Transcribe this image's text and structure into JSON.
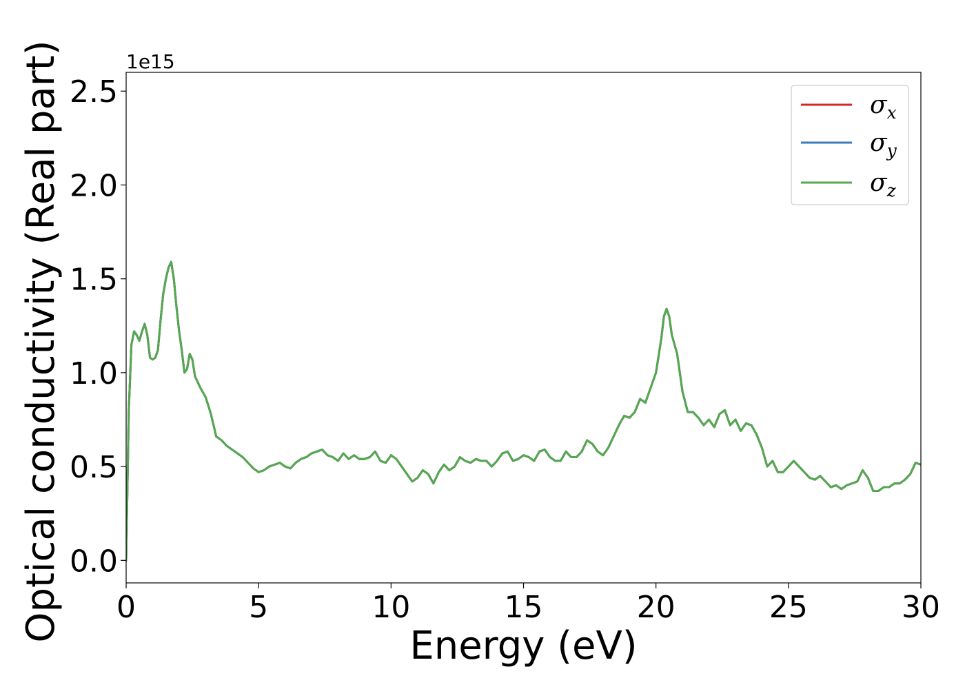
{
  "chart_data": {
    "type": "line",
    "xlabel": "Energy (eV)",
    "ylabel": "Optical conductivity (Real part)",
    "y_offset_label": "1e15",
    "xlim": [
      0,
      30
    ],
    "ylim": [
      -0.12,
      2.6
    ],
    "x_ticks": [
      0,
      5,
      10,
      15,
      20,
      25,
      30
    ],
    "x_tick_labels": [
      "0",
      "5",
      "10",
      "15",
      "20",
      "25",
      "30"
    ],
    "y_ticks": [
      0.0,
      0.5,
      1.0,
      1.5,
      2.0,
      2.5
    ],
    "y_tick_labels": [
      "0.0",
      "0.5",
      "1.0",
      "1.5",
      "2.0",
      "2.5"
    ],
    "grid": false,
    "legend_position": "top-right",
    "x": [
      0,
      0.1,
      0.2,
      0.3,
      0.4,
      0.5,
      0.6,
      0.7,
      0.8,
      0.9,
      1.0,
      1.1,
      1.2,
      1.3,
      1.4,
      1.5,
      1.6,
      1.7,
      1.8,
      1.9,
      2.0,
      2.1,
      2.2,
      2.3,
      2.4,
      2.5,
      2.6,
      2.7,
      2.8,
      3.0,
      3.2,
      3.4,
      3.6,
      3.8,
      4.0,
      4.2,
      4.4,
      4.6,
      4.8,
      5.0,
      5.2,
      5.4,
      5.6,
      5.8,
      6.0,
      6.2,
      6.4,
      6.6,
      6.8,
      7.0,
      7.2,
      7.4,
      7.6,
      7.8,
      8.0,
      8.2,
      8.4,
      8.6,
      8.8,
      9.0,
      9.2,
      9.4,
      9.6,
      9.8,
      10.0,
      10.2,
      10.4,
      10.6,
      10.8,
      11.0,
      11.2,
      11.4,
      11.6,
      11.8,
      12.0,
      12.2,
      12.4,
      12.6,
      12.8,
      13.0,
      13.2,
      13.4,
      13.6,
      13.8,
      14.0,
      14.2,
      14.4,
      14.6,
      14.8,
      15.0,
      15.2,
      15.4,
      15.6,
      15.8,
      16.0,
      16.2,
      16.4,
      16.6,
      16.8,
      17.0,
      17.2,
      17.4,
      17.6,
      17.8,
      18.0,
      18.2,
      18.4,
      18.6,
      18.8,
      19.0,
      19.2,
      19.4,
      19.6,
      19.8,
      20.0,
      20.2,
      20.3,
      20.4,
      20.5,
      20.6,
      20.7,
      20.8,
      21.0,
      21.2,
      21.4,
      21.6,
      21.8,
      22.0,
      22.2,
      22.4,
      22.6,
      22.8,
      23.0,
      23.2,
      23.4,
      23.6,
      23.8,
      24.0,
      24.2,
      24.4,
      24.6,
      24.8,
      25.0,
      25.2,
      25.4,
      25.6,
      25.8,
      26.0,
      26.2,
      26.4,
      26.6,
      26.8,
      27.0,
      27.2,
      27.4,
      27.6,
      27.8,
      28.0,
      28.2,
      28.4,
      28.6,
      28.8,
      29.0,
      29.2,
      29.4,
      29.6,
      29.8,
      30.0
    ],
    "series": [
      {
        "name": "σx",
        "label_base": "σ",
        "label_sub": "x",
        "color": "#d62728",
        "values": [
          0.0,
          0.8,
          1.15,
          1.22,
          1.2,
          1.17,
          1.22,
          1.26,
          1.2,
          1.08,
          1.07,
          1.08,
          1.12,
          1.28,
          1.42,
          1.5,
          1.56,
          1.59,
          1.5,
          1.35,
          1.22,
          1.12,
          1.0,
          1.02,
          1.1,
          1.07,
          0.98,
          0.95,
          0.92,
          0.87,
          0.78,
          0.66,
          0.64,
          0.61,
          0.59,
          0.57,
          0.55,
          0.52,
          0.49,
          0.47,
          0.48,
          0.5,
          0.51,
          0.52,
          0.5,
          0.49,
          0.52,
          0.54,
          0.55,
          0.57,
          0.58,
          0.59,
          0.56,
          0.55,
          0.53,
          0.57,
          0.54,
          0.56,
          0.54,
          0.54,
          0.55,
          0.58,
          0.53,
          0.52,
          0.56,
          0.54,
          0.5,
          0.46,
          0.42,
          0.44,
          0.48,
          0.46,
          0.41,
          0.47,
          0.51,
          0.48,
          0.5,
          0.55,
          0.53,
          0.52,
          0.54,
          0.53,
          0.53,
          0.5,
          0.53,
          0.57,
          0.58,
          0.53,
          0.54,
          0.56,
          0.55,
          0.53,
          0.58,
          0.59,
          0.55,
          0.53,
          0.53,
          0.58,
          0.55,
          0.55,
          0.58,
          0.64,
          0.62,
          0.58,
          0.56,
          0.6,
          0.66,
          0.72,
          0.77,
          0.76,
          0.79,
          0.86,
          0.84,
          0.92,
          1.0,
          1.18,
          1.3,
          1.34,
          1.3,
          1.2,
          1.15,
          1.1,
          0.9,
          0.79,
          0.79,
          0.76,
          0.72,
          0.75,
          0.71,
          0.78,
          0.8,
          0.72,
          0.75,
          0.69,
          0.73,
          0.72,
          0.67,
          0.6,
          0.5,
          0.53,
          0.47,
          0.47,
          0.5,
          0.53,
          0.5,
          0.47,
          0.44,
          0.43,
          0.45,
          0.42,
          0.39,
          0.4,
          0.38,
          0.4,
          0.41,
          0.42,
          0.48,
          0.44,
          0.37,
          0.37,
          0.39,
          0.39,
          0.41,
          0.41,
          0.43,
          0.46,
          0.52,
          0.51
        ]
      },
      {
        "name": "σy",
        "label_base": "σ",
        "label_sub": "y",
        "color": "#3a7bb8",
        "values": [
          0.0,
          0.8,
          1.15,
          1.22,
          1.2,
          1.17,
          1.22,
          1.26,
          1.2,
          1.08,
          1.07,
          1.08,
          1.12,
          1.28,
          1.42,
          1.5,
          1.56,
          1.59,
          1.5,
          1.35,
          1.22,
          1.12,
          1.0,
          1.02,
          1.1,
          1.07,
          0.98,
          0.95,
          0.92,
          0.87,
          0.78,
          0.66,
          0.64,
          0.61,
          0.59,
          0.57,
          0.55,
          0.52,
          0.49,
          0.47,
          0.48,
          0.5,
          0.51,
          0.52,
          0.5,
          0.49,
          0.52,
          0.54,
          0.55,
          0.57,
          0.58,
          0.59,
          0.56,
          0.55,
          0.53,
          0.57,
          0.54,
          0.56,
          0.54,
          0.54,
          0.55,
          0.58,
          0.53,
          0.52,
          0.56,
          0.54,
          0.5,
          0.46,
          0.42,
          0.44,
          0.48,
          0.46,
          0.41,
          0.47,
          0.51,
          0.48,
          0.5,
          0.55,
          0.53,
          0.52,
          0.54,
          0.53,
          0.53,
          0.5,
          0.53,
          0.57,
          0.58,
          0.53,
          0.54,
          0.56,
          0.55,
          0.53,
          0.58,
          0.59,
          0.55,
          0.53,
          0.53,
          0.58,
          0.55,
          0.55,
          0.58,
          0.64,
          0.62,
          0.58,
          0.56,
          0.6,
          0.66,
          0.72,
          0.77,
          0.76,
          0.79,
          0.86,
          0.84,
          0.92,
          1.0,
          1.18,
          1.3,
          1.34,
          1.3,
          1.2,
          1.15,
          1.1,
          0.9,
          0.79,
          0.79,
          0.76,
          0.72,
          0.75,
          0.71,
          0.78,
          0.8,
          0.72,
          0.75,
          0.69,
          0.73,
          0.72,
          0.67,
          0.6,
          0.5,
          0.53,
          0.47,
          0.47,
          0.5,
          0.53,
          0.5,
          0.47,
          0.44,
          0.43,
          0.45,
          0.42,
          0.39,
          0.4,
          0.38,
          0.4,
          0.41,
          0.42,
          0.48,
          0.44,
          0.37,
          0.37,
          0.39,
          0.39,
          0.41,
          0.41,
          0.43,
          0.46,
          0.52,
          0.51
        ]
      },
      {
        "name": "σz",
        "label_base": "σ",
        "label_sub": "z",
        "color": "#55a84f",
        "values": [
          0.0,
          0.8,
          1.15,
          1.22,
          1.2,
          1.17,
          1.22,
          1.26,
          1.2,
          1.08,
          1.07,
          1.08,
          1.12,
          1.28,
          1.42,
          1.5,
          1.56,
          1.59,
          1.5,
          1.35,
          1.22,
          1.12,
          1.0,
          1.02,
          1.1,
          1.07,
          0.98,
          0.95,
          0.92,
          0.87,
          0.78,
          0.66,
          0.64,
          0.61,
          0.59,
          0.57,
          0.55,
          0.52,
          0.49,
          0.47,
          0.48,
          0.5,
          0.51,
          0.52,
          0.5,
          0.49,
          0.52,
          0.54,
          0.55,
          0.57,
          0.58,
          0.59,
          0.56,
          0.55,
          0.53,
          0.57,
          0.54,
          0.56,
          0.54,
          0.54,
          0.55,
          0.58,
          0.53,
          0.52,
          0.56,
          0.54,
          0.5,
          0.46,
          0.42,
          0.44,
          0.48,
          0.46,
          0.41,
          0.47,
          0.51,
          0.48,
          0.5,
          0.55,
          0.53,
          0.52,
          0.54,
          0.53,
          0.53,
          0.5,
          0.53,
          0.57,
          0.58,
          0.53,
          0.54,
          0.56,
          0.55,
          0.53,
          0.58,
          0.59,
          0.55,
          0.53,
          0.53,
          0.58,
          0.55,
          0.55,
          0.58,
          0.64,
          0.62,
          0.58,
          0.56,
          0.6,
          0.66,
          0.72,
          0.77,
          0.76,
          0.79,
          0.86,
          0.84,
          0.92,
          1.0,
          1.18,
          1.3,
          1.34,
          1.3,
          1.2,
          1.15,
          1.1,
          0.9,
          0.79,
          0.79,
          0.76,
          0.72,
          0.75,
          0.71,
          0.78,
          0.8,
          0.72,
          0.75,
          0.69,
          0.73,
          0.72,
          0.67,
          0.6,
          0.5,
          0.53,
          0.47,
          0.47,
          0.5,
          0.53,
          0.5,
          0.47,
          0.44,
          0.43,
          0.45,
          0.42,
          0.39,
          0.4,
          0.38,
          0.4,
          0.41,
          0.42,
          0.48,
          0.44,
          0.37,
          0.37,
          0.39,
          0.39,
          0.41,
          0.41,
          0.43,
          0.46,
          0.52,
          0.51
        ]
      }
    ]
  }
}
